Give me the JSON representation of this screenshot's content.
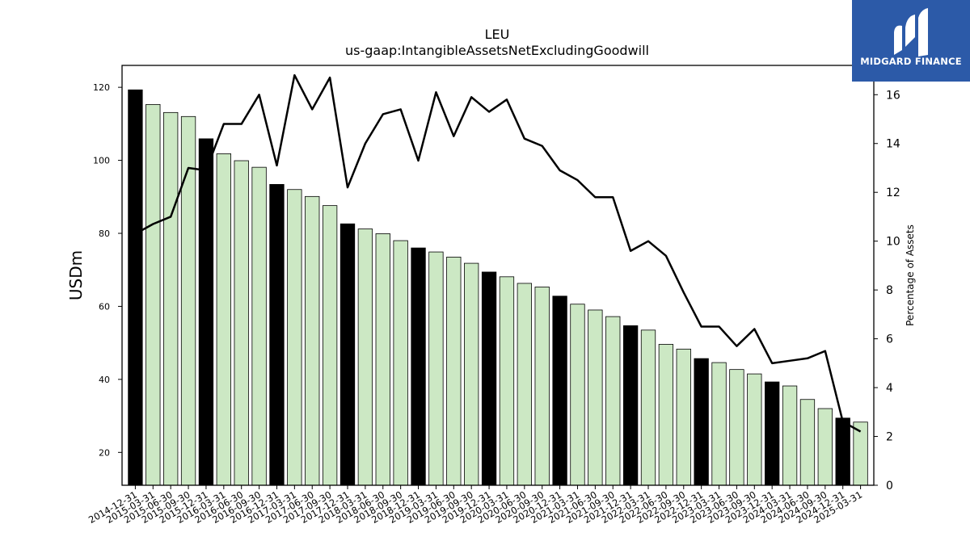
{
  "logo": {
    "text": "MIDGARD FINANCE",
    "color": "#2c5aa8"
  },
  "chart_data": {
    "type": "bar+line",
    "title": "LEU",
    "subtitle": "us-gaap:IntangibleAssetsNetExcludingGoodwill",
    "ylabel": "USDm",
    "y2label": "Percentage of Assets",
    "ylim": [
      11,
      126
    ],
    "y2lim": [
      0,
      17.2
    ],
    "yticks": [
      20,
      40,
      60,
      80,
      100,
      120
    ],
    "y2ticks": [
      0,
      2,
      4,
      6,
      8,
      10,
      12,
      14,
      16
    ],
    "categories": [
      "2014-12-31",
      "2015-03-31",
      "2015-06-30",
      "2015-09-30",
      "2015-12-31",
      "2016-03-31",
      "2016-06-30",
      "2016-09-30",
      "2016-12-31",
      "2017-03-31",
      "2017-06-30",
      "2017-09-30",
      "2017-12-31",
      "2018-03-31",
      "2018-06-30",
      "2018-09-30",
      "2018-12-31",
      "2019-03-31",
      "2019-06-30",
      "2019-09-30",
      "2019-12-31",
      "2020-03-31",
      "2020-06-30",
      "2020-09-30",
      "2020-12-31",
      "2021-03-31",
      "2021-06-30",
      "2021-09-30",
      "2021-12-31",
      "2022-03-31",
      "2022-06-30",
      "2022-09-30",
      "2022-12-31",
      "2023-03-31",
      "2023-06-30",
      "2023-09-30",
      "2023-12-31",
      "2024-03-31",
      "2024-06-30",
      "2024-09-30",
      "2024-12-31",
      "2025-03-31"
    ],
    "series": [
      {
        "kind": "bar",
        "values": [
          119.3,
          115.3,
          113.1,
          112.0,
          105.9,
          101.8,
          99.9,
          98.1,
          93.4,
          92.0,
          90.1,
          87.6,
          82.6,
          81.2,
          79.9,
          78.0,
          76.0,
          74.9,
          73.5,
          71.8,
          69.4,
          68.1,
          66.3,
          65.3,
          62.8,
          60.6,
          59.0,
          57.2,
          54.7,
          53.5,
          49.6,
          48.3,
          45.7,
          44.6,
          42.7,
          41.5,
          39.3,
          38.2,
          34.5,
          32.0,
          29.4,
          28.3
        ],
        "year_end_color": "#000000",
        "color": "#cce8c4"
      },
      {
        "kind": "line",
        "values": [
          10.3,
          10.7,
          11.0,
          13.0,
          12.9,
          14.8,
          14.8,
          16.0,
          13.1,
          16.8,
          15.4,
          16.7,
          12.2,
          14.0,
          15.2,
          15.4,
          13.3,
          16.1,
          14.3,
          15.9,
          15.3,
          15.8,
          14.2,
          13.9,
          12.9,
          12.5,
          11.8,
          11.8,
          9.6,
          10.0,
          9.4,
          7.9,
          6.5,
          6.5,
          5.7,
          6.4,
          5.0,
          5.1,
          5.2,
          5.5,
          2.6,
          2.2
        ],
        "color": "#000000"
      }
    ]
  }
}
